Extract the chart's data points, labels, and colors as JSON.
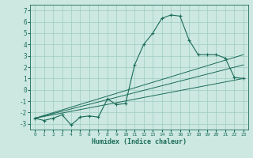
{
  "xlabel": "Humidex (Indice chaleur)",
  "bg_color": "#cce8e0",
  "grid_color": "#9dccc2",
  "line_color": "#1a6b5a",
  "xlim": [
    -0.5,
    23.5
  ],
  "ylim": [
    -3.5,
    7.5
  ],
  "xticks": [
    0,
    1,
    2,
    3,
    4,
    5,
    6,
    7,
    8,
    9,
    10,
    11,
    12,
    13,
    14,
    15,
    16,
    17,
    18,
    19,
    20,
    21,
    22,
    23
  ],
  "yticks": [
    -3,
    -2,
    -1,
    0,
    1,
    2,
    3,
    4,
    5,
    6,
    7
  ],
  "main_line_x": [
    0,
    1,
    2,
    3,
    4,
    5,
    6,
    7,
    8,
    9,
    10,
    11,
    12,
    13,
    14,
    15,
    16,
    17,
    18,
    19,
    20,
    21,
    22,
    23
  ],
  "main_line_y": [
    -2.5,
    -2.7,
    -2.5,
    -2.2,
    -3.1,
    -2.4,
    -2.3,
    -2.4,
    -0.8,
    -1.3,
    -1.2,
    2.2,
    4.0,
    5.0,
    6.3,
    6.6,
    6.5,
    4.4,
    3.1,
    3.1,
    3.1,
    2.8,
    1.1,
    1.0
  ],
  "trend1_x": [
    0,
    23
  ],
  "trend1_y": [
    -2.5,
    1.0
  ],
  "trend2_x": [
    0,
    23
  ],
  "trend2_y": [
    -2.5,
    3.1
  ],
  "trend3_x": [
    0,
    23
  ],
  "trend3_y": [
    -2.5,
    2.2
  ]
}
